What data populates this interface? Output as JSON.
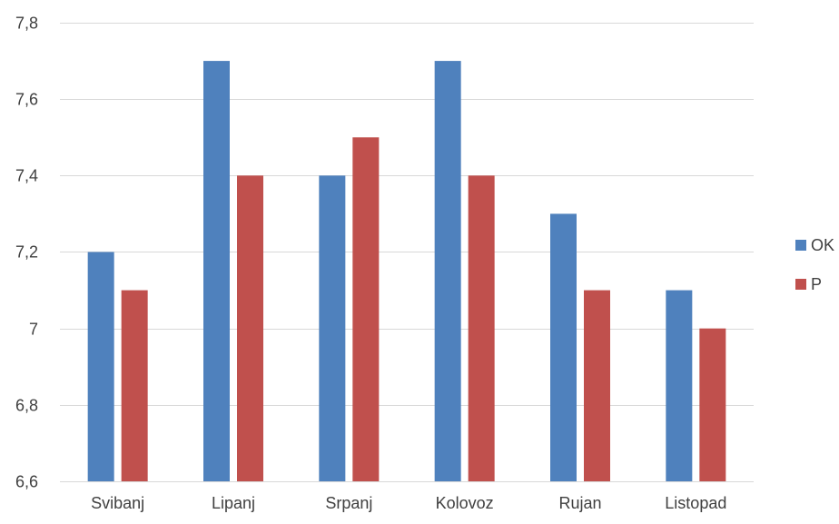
{
  "chart_data": {
    "type": "bar",
    "categories": [
      "Svibanj",
      "Lipanj",
      "Srpanj",
      "Kolovoz",
      "Rujan",
      "Listopad"
    ],
    "series": [
      {
        "name": "OK",
        "color": "#4f81bd",
        "values": [
          7.2,
          7.7,
          7.4,
          7.7,
          7.3,
          7.1
        ]
      },
      {
        "name": "P",
        "color": "#c0504d",
        "values": [
          7.1,
          7.4,
          7.5,
          7.4,
          7.1,
          7.0
        ]
      }
    ],
    "ylim": [
      6.6,
      7.8
    ],
    "yticks": [
      {
        "value": 6.6,
        "label": "6,6"
      },
      {
        "value": 6.8,
        "label": "6,8"
      },
      {
        "value": 7.0,
        "label": "7"
      },
      {
        "value": 7.2,
        "label": "7,2"
      },
      {
        "value": 7.4,
        "label": "7,4"
      },
      {
        "value": 7.6,
        "label": "7,6"
      },
      {
        "value": 7.8,
        "label": "7,8"
      }
    ],
    "grid": true,
    "legend_position": "right",
    "gridline_color": "#d9d9d9"
  }
}
